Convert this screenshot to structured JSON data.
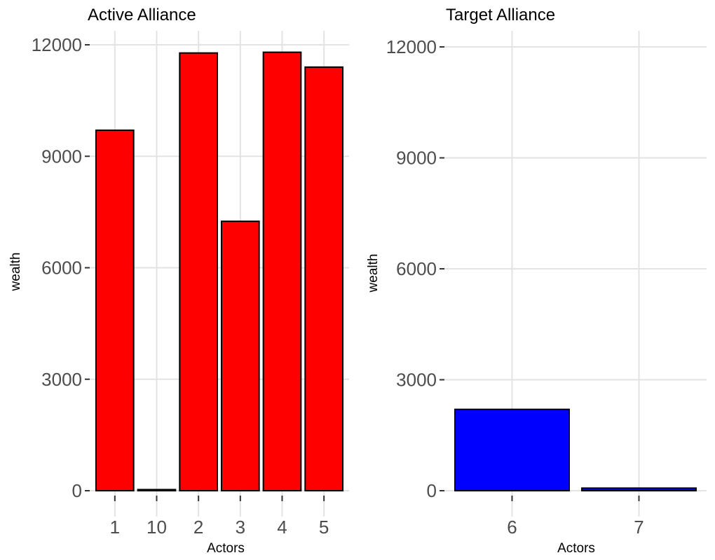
{
  "chart_data": [
    {
      "type": "bar",
      "title": "Active Alliance",
      "xlabel": "Actors",
      "ylabel": "wealth",
      "categories": [
        "1",
        "10",
        "2",
        "3",
        "4",
        "5"
      ],
      "values": [
        9700,
        30,
        11780,
        7250,
        11800,
        11400
      ],
      "ylim": [
        0,
        12000
      ],
      "yticks": [
        0,
        3000,
        6000,
        9000,
        12000
      ],
      "ytick_labels": [
        "0",
        "3000",
        "6000",
        "9000",
        "12000"
      ],
      "bar_color": "#ff0000",
      "grid": true,
      "legend": "none"
    },
    {
      "type": "bar",
      "title": "Target Alliance",
      "xlabel": "Actors",
      "ylabel": "wealth",
      "categories": [
        "6",
        "7"
      ],
      "values": [
        2200,
        70
      ],
      "ylim": [
        0,
        12000
      ],
      "yticks": [
        0,
        3000,
        6000,
        9000,
        12000
      ],
      "ytick_labels": [
        "0",
        "3000",
        "6000",
        "9000",
        "12000"
      ],
      "bar_color": "#0000ff",
      "grid": true,
      "legend": "none"
    }
  ]
}
